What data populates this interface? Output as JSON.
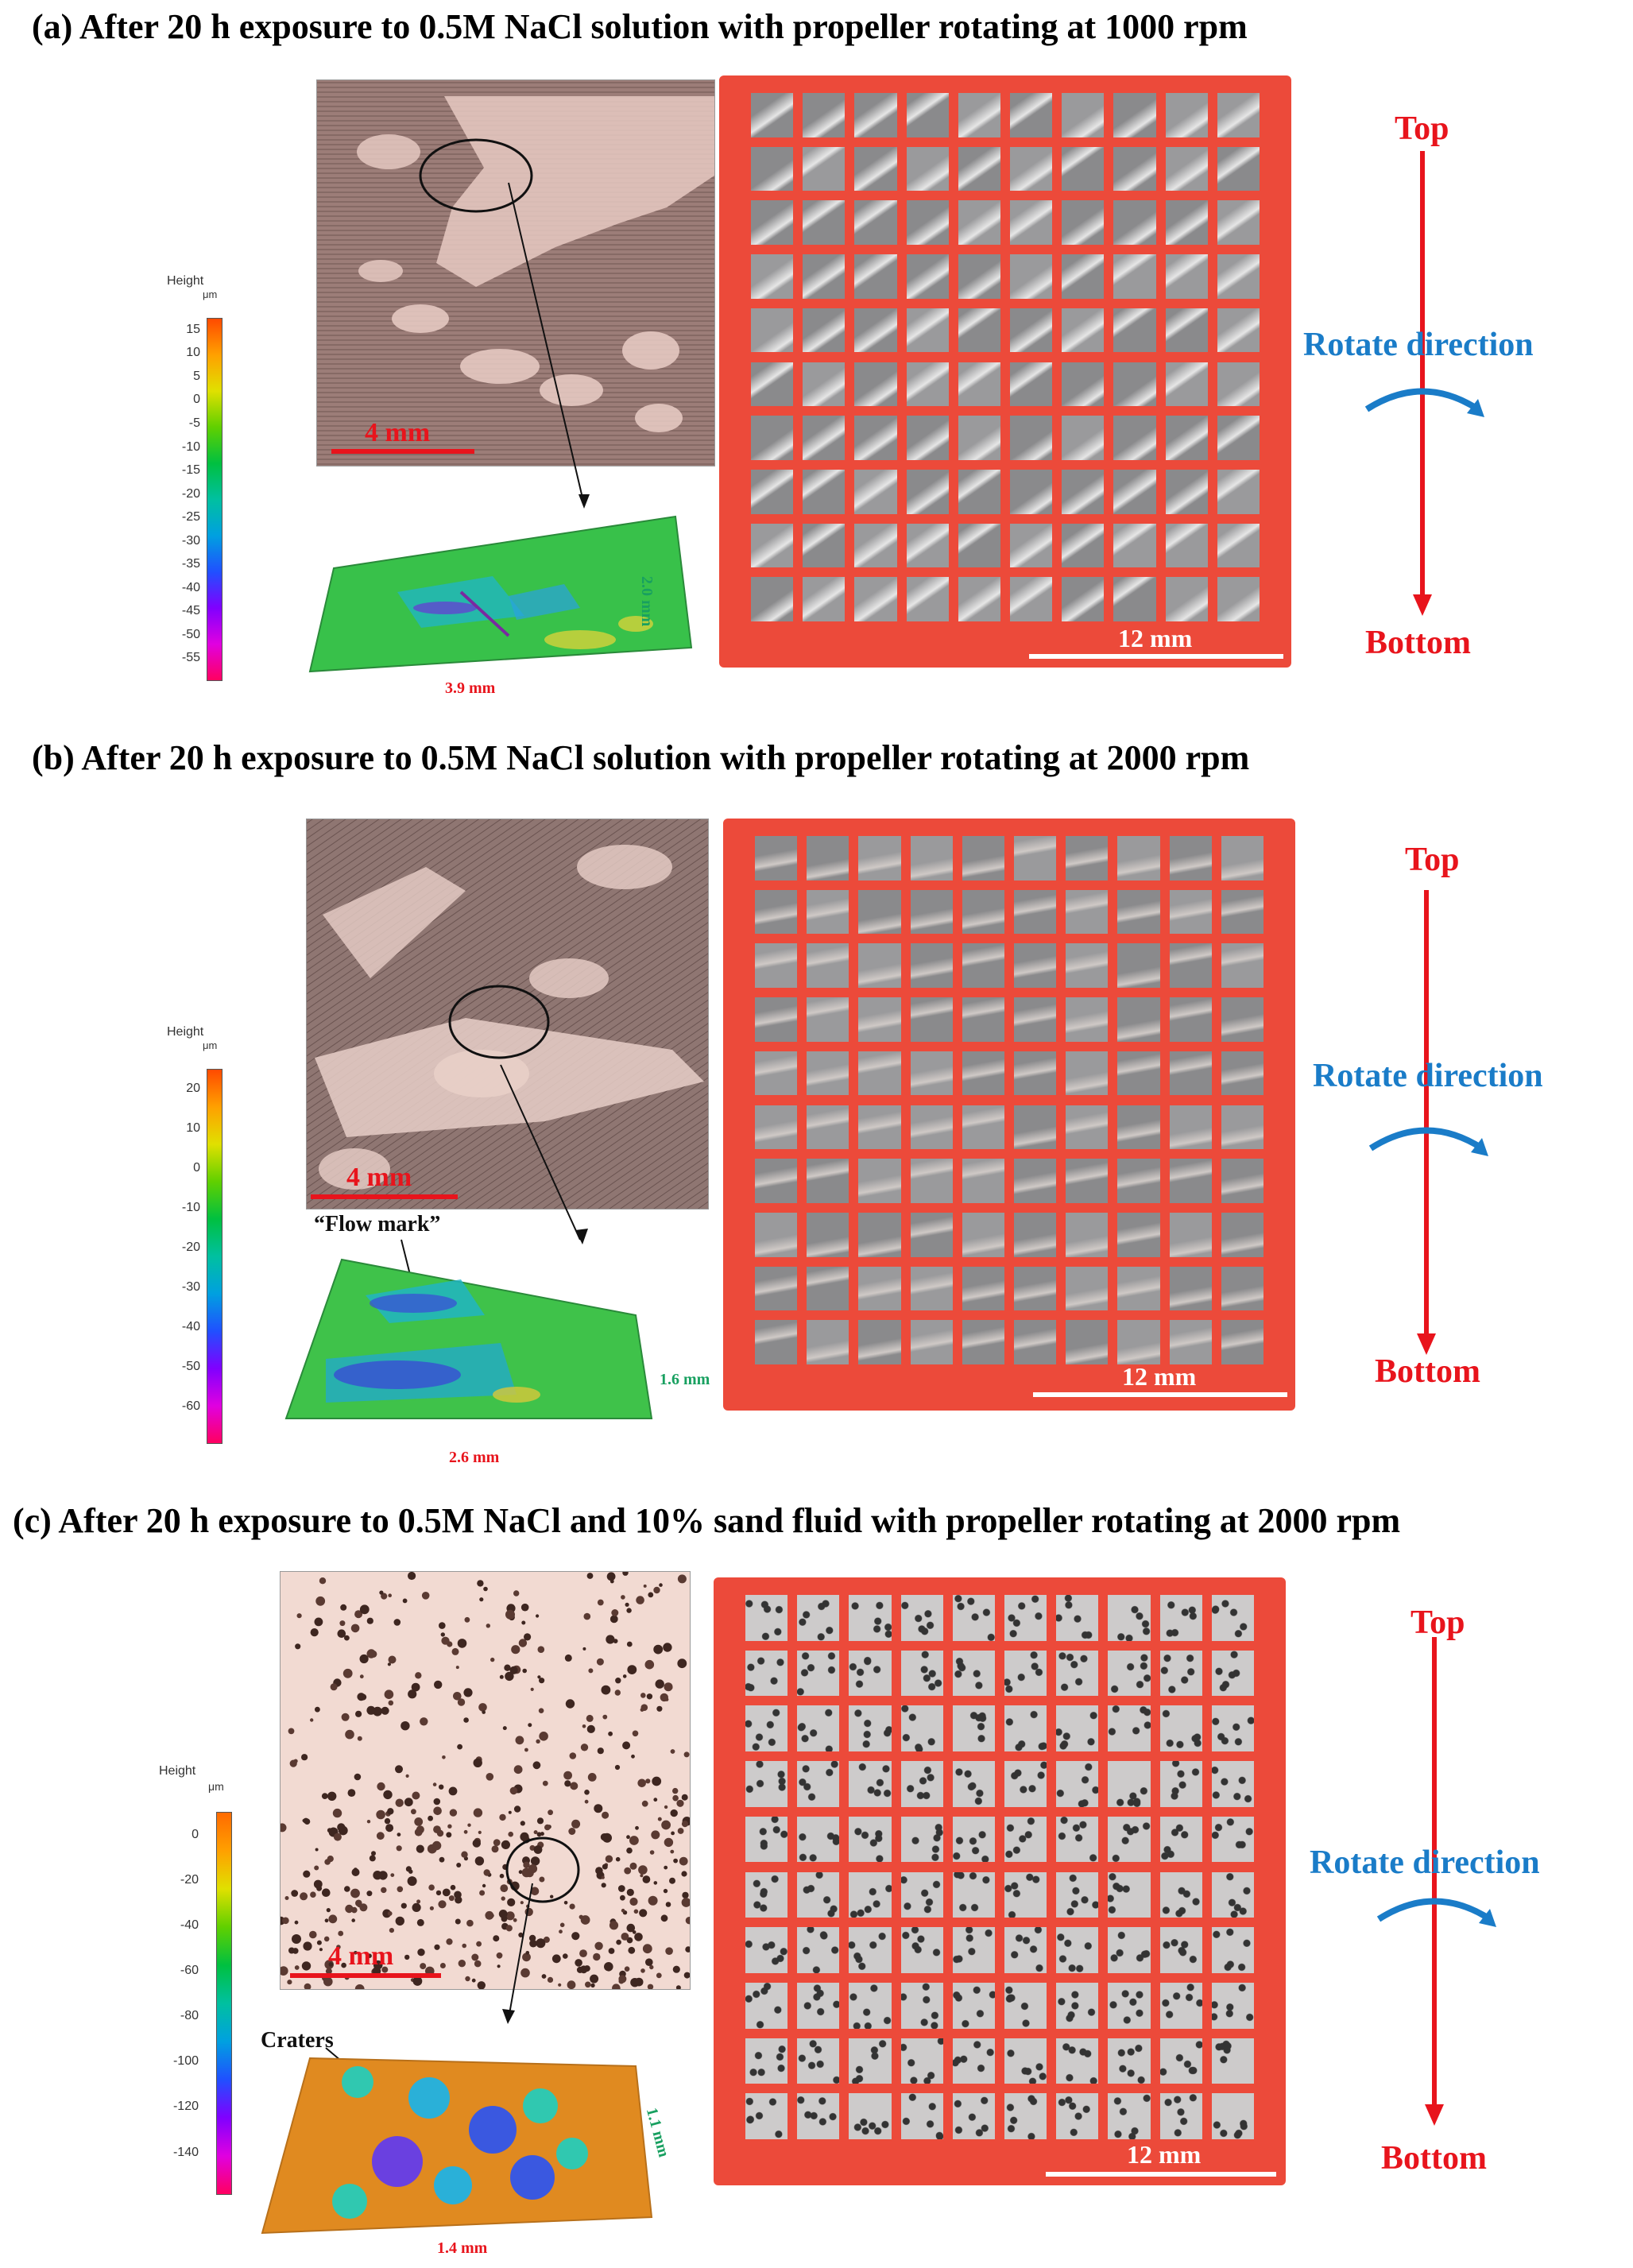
{
  "panels": [
    {
      "title": "(a) After 20 h exposure to 0.5M NaCl solution with propeller rotating at 1000 rpm",
      "legend": {
        "heading": "Height",
        "unit": "μm",
        "ticks": [
          "15",
          "10",
          "5",
          "0",
          "-5",
          "-10",
          "-15",
          "-20",
          "-25",
          "-30",
          "-35",
          "-40",
          "-45",
          "-50",
          "-55"
        ]
      },
      "photo_scale": "4 mm",
      "profile_width": "3.9 mm",
      "profile_depth": "2.0 mm",
      "grid_scale": "12 mm",
      "top_label": "Top",
      "rotate_label": "Rotate direction",
      "bottom_label": "Bottom"
    },
    {
      "title": "(b) After 20 h exposure to 0.5M NaCl solution with propeller rotating at 2000 rpm",
      "legend": {
        "heading": "Height",
        "unit": "μm",
        "ticks": [
          "20",
          "10",
          "0",
          "-10",
          "-20",
          "-30",
          "-40",
          "-50",
          "-60"
        ]
      },
      "photo_scale": "4 mm",
      "annotation": "“Flow mark”",
      "profile_width": "2.6 mm",
      "profile_depth": "1.6 mm",
      "grid_scale": "12 mm",
      "top_label": "Top",
      "rotate_label": "Rotate direction",
      "bottom_label": "Bottom"
    },
    {
      "title": "(c) After 20 h exposure to 0.5M NaCl and 10% sand fluid with propeller rotating at 2000 rpm",
      "legend": {
        "heading": "Height",
        "unit": "μm",
        "ticks": [
          "0",
          "-20",
          "-40",
          "-60",
          "-80",
          "-100",
          "-120",
          "-140"
        ]
      },
      "photo_scale": "4 mm",
      "annotation": "Craters",
      "profile_width": "1.4 mm",
      "profile_depth": "1.1 mm",
      "grid_scale": "12 mm",
      "top_label": "Top",
      "rotate_label": "Rotate direction",
      "bottom_label": "Bottom"
    }
  ],
  "colors": {
    "title_red": "#e8141c",
    "rotate_blue": "#1a7cc8",
    "board_red": "#ec4a3a",
    "profile_label_green": "#18a060"
  }
}
